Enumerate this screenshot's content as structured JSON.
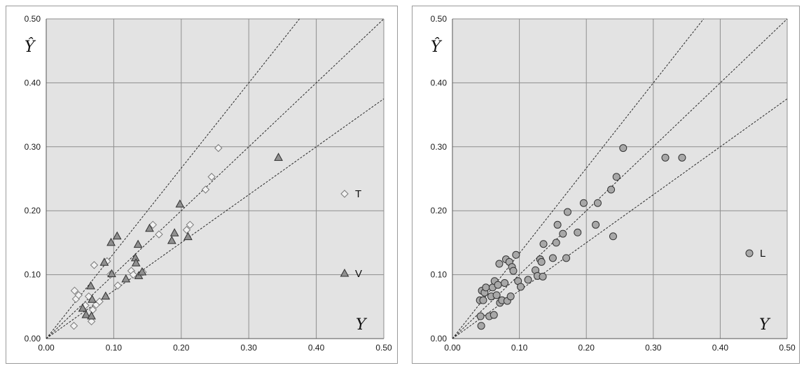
{
  "chart_data": [
    {
      "type": "scatter",
      "xlabel": "Y",
      "ylabel": "Ŷ",
      "xlim": [
        0,
        0.5
      ],
      "ylim": [
        0,
        0.5
      ],
      "xticks": [
        "0.00",
        "0.10",
        "0.20",
        "0.30",
        "0.40",
        "0.50"
      ],
      "yticks": [
        "0.00",
        "0.10",
        "0.20",
        "0.30",
        "0.40",
        "0.50"
      ],
      "grid": true,
      "legend_position": "right",
      "reference_line_slopes": [
        1.333,
        1.0,
        0.75
      ],
      "series": [
        {
          "name": "T",
          "marker": "diamond",
          "color": "#f2f2f2",
          "points": [
            [
              0.042,
              0.075
            ],
            [
              0.044,
              0.062
            ],
            [
              0.041,
              0.02
            ],
            [
              0.048,
              0.068
            ],
            [
              0.058,
              0.052
            ],
            [
              0.063,
              0.066
            ],
            [
              0.067,
              0.027
            ],
            [
              0.069,
              0.045
            ],
            [
              0.071,
              0.115
            ],
            [
              0.074,
              0.053
            ],
            [
              0.079,
              0.058
            ],
            [
              0.09,
              0.121
            ],
            [
              0.095,
              0.1
            ],
            [
              0.106,
              0.083
            ],
            [
              0.126,
              0.106
            ],
            [
              0.129,
              0.1
            ],
            [
              0.143,
              0.104
            ],
            [
              0.158,
              0.178
            ],
            [
              0.167,
              0.163
            ],
            [
              0.208,
              0.17
            ],
            [
              0.213,
              0.178
            ],
            [
              0.236,
              0.233
            ],
            [
              0.245,
              0.253
            ],
            [
              0.255,
              0.298
            ]
          ]
        },
        {
          "name": "V",
          "marker": "triangle",
          "color": "#909090",
          "points": [
            [
              0.054,
              0.047
            ],
            [
              0.059,
              0.037
            ],
            [
              0.067,
              0.035
            ],
            [
              0.066,
              0.082
            ],
            [
              0.068,
              0.061
            ],
            [
              0.086,
              0.119
            ],
            [
              0.088,
              0.066
            ],
            [
              0.096,
              0.15
            ],
            [
              0.097,
              0.101
            ],
            [
              0.105,
              0.16
            ],
            [
              0.118,
              0.093
            ],
            [
              0.132,
              0.126
            ],
            [
              0.133,
              0.118
            ],
            [
              0.136,
              0.147
            ],
            [
              0.137,
              0.098
            ],
            [
              0.142,
              0.104
            ],
            [
              0.153,
              0.172
            ],
            [
              0.186,
              0.153
            ],
            [
              0.19,
              0.165
            ],
            [
              0.198,
              0.21
            ],
            [
              0.21,
              0.159
            ],
            [
              0.344,
              0.283
            ]
          ]
        }
      ]
    },
    {
      "type": "scatter",
      "xlabel": "Y",
      "ylabel": "Ŷ",
      "xlim": [
        0,
        0.5
      ],
      "ylim": [
        0,
        0.5
      ],
      "xticks": [
        "0.00",
        "0.10",
        "0.20",
        "0.30",
        "0.40",
        "0.50"
      ],
      "yticks": [
        "0.00",
        "0.10",
        "0.20",
        "0.30",
        "0.40",
        "0.50"
      ],
      "grid": true,
      "legend_position": "right",
      "reference_line_slopes": [
        1.333,
        1.0,
        0.75
      ],
      "series": [
        {
          "name": "L",
          "marker": "circle",
          "color": "#a8a8a8",
          "points": [
            [
              0.041,
              0.06
            ],
            [
              0.042,
              0.035
            ],
            [
              0.043,
              0.02
            ],
            [
              0.044,
              0.075
            ],
            [
              0.046,
              0.06
            ],
            [
              0.048,
              0.072
            ],
            [
              0.05,
              0.08
            ],
            [
              0.055,
              0.035
            ],
            [
              0.058,
              0.066
            ],
            [
              0.06,
              0.08
            ],
            [
              0.062,
              0.037
            ],
            [
              0.063,
              0.09
            ],
            [
              0.066,
              0.068
            ],
            [
              0.068,
              0.084
            ],
            [
              0.07,
              0.117
            ],
            [
              0.071,
              0.056
            ],
            [
              0.074,
              0.06
            ],
            [
              0.078,
              0.087
            ],
            [
              0.08,
              0.124
            ],
            [
              0.082,
              0.059
            ],
            [
              0.085,
              0.12
            ],
            [
              0.087,
              0.066
            ],
            [
              0.089,
              0.112
            ],
            [
              0.091,
              0.106
            ],
            [
              0.095,
              0.131
            ],
            [
              0.098,
              0.09
            ],
            [
              0.102,
              0.081
            ],
            [
              0.113,
              0.092
            ],
            [
              0.124,
              0.107
            ],
            [
              0.127,
              0.098
            ],
            [
              0.131,
              0.124
            ],
            [
              0.133,
              0.12
            ],
            [
              0.135,
              0.097
            ],
            [
              0.136,
              0.148
            ],
            [
              0.15,
              0.126
            ],
            [
              0.155,
              0.15
            ],
            [
              0.157,
              0.178
            ],
            [
              0.165,
              0.164
            ],
            [
              0.17,
              0.126
            ],
            [
              0.172,
              0.198
            ],
            [
              0.187,
              0.166
            ],
            [
              0.196,
              0.212
            ],
            [
              0.214,
              0.178
            ],
            [
              0.217,
              0.212
            ],
            [
              0.237,
              0.233
            ],
            [
              0.24,
              0.16
            ],
            [
              0.245,
              0.253
            ],
            [
              0.255,
              0.298
            ],
            [
              0.318,
              0.283
            ],
            [
              0.343,
              0.283
            ]
          ]
        }
      ]
    }
  ]
}
